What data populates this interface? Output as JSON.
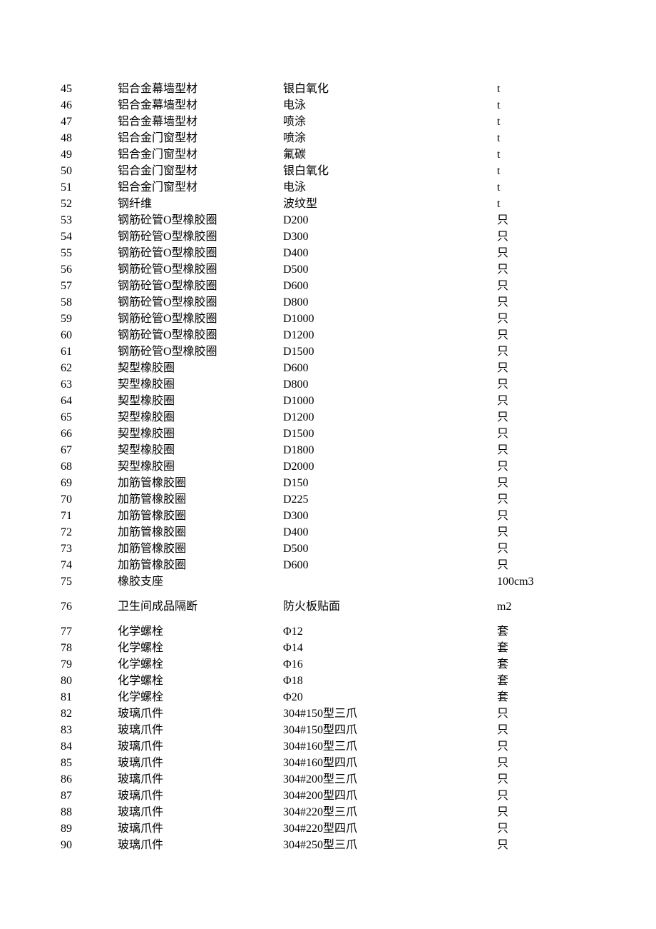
{
  "columns": {
    "num_width": 80,
    "name_width": 232,
    "spec_width": 300
  },
  "rows": [
    {
      "num": "45",
      "name": "铝合金幕墙型材",
      "spec": "银白氧化",
      "unit": "t"
    },
    {
      "num": "46",
      "name": "铝合金幕墙型材",
      "spec": "电泳",
      "unit": "t"
    },
    {
      "num": "47",
      "name": "铝合金幕墙型材",
      "spec": "喷涂",
      "unit": "t"
    },
    {
      "num": "48",
      "name": "铝合金门窗型材",
      "spec": "喷涂",
      "unit": "t"
    },
    {
      "num": "49",
      "name": "铝合金门窗型材",
      "spec": "氟碳",
      "unit": "t"
    },
    {
      "num": "50",
      "name": "铝合金门窗型材",
      "spec": "银白氧化",
      "unit": "t"
    },
    {
      "num": "51",
      "name": "铝合金门窗型材",
      "spec": "电泳",
      "unit": "t"
    },
    {
      "num": "52",
      "name": "钢纤维",
      "spec": "波纹型",
      "unit": "t"
    },
    {
      "num": "53",
      "name": "钢筋砼管O型橡胶圈",
      "spec": "D200",
      "unit": "只"
    },
    {
      "num": "54",
      "name": "钢筋砼管O型橡胶圈",
      "spec": "D300",
      "unit": "只"
    },
    {
      "num": "55",
      "name": "钢筋砼管O型橡胶圈",
      "spec": "D400",
      "unit": "只"
    },
    {
      "num": "56",
      "name": "钢筋砼管O型橡胶圈",
      "spec": "D500",
      "unit": "只"
    },
    {
      "num": "57",
      "name": "钢筋砼管O型橡胶圈",
      "spec": "D600",
      "unit": "只"
    },
    {
      "num": "58",
      "name": "钢筋砼管O型橡胶圈",
      "spec": "D800",
      "unit": "只"
    },
    {
      "num": "59",
      "name": "钢筋砼管O型橡胶圈",
      "spec": "D1000",
      "unit": "只"
    },
    {
      "num": "60",
      "name": "钢筋砼管O型橡胶圈",
      "spec": "D1200",
      "unit": "只"
    },
    {
      "num": "61",
      "name": "钢筋砼管O型橡胶圈",
      "spec": "D1500",
      "unit": "只"
    },
    {
      "num": "62",
      "name": "契型橡胶圈",
      "spec": "D600",
      "unit": "只"
    },
    {
      "num": "63",
      "name": "契型橡胶圈",
      "spec": "D800",
      "unit": "只"
    },
    {
      "num": "64",
      "name": "契型橡胶圈",
      "spec": "D1000",
      "unit": "只"
    },
    {
      "num": "65",
      "name": "契型橡胶圈",
      "spec": "D1200",
      "unit": "只"
    },
    {
      "num": "66",
      "name": "契型橡胶圈",
      "spec": "D1500",
      "unit": "只"
    },
    {
      "num": "67",
      "name": "契型橡胶圈",
      "spec": "D1800",
      "unit": "只"
    },
    {
      "num": "68",
      "name": "契型橡胶圈",
      "spec": "D2000",
      "unit": "只"
    },
    {
      "num": "69",
      "name": "加筋管橡胶圈",
      "spec": "D150",
      "unit": "只"
    },
    {
      "num": "70",
      "name": "加筋管橡胶圈",
      "spec": "D225",
      "unit": "只"
    },
    {
      "num": "71",
      "name": "加筋管橡胶圈",
      "spec": "D300",
      "unit": "只"
    },
    {
      "num": "72",
      "name": "加筋管橡胶圈",
      "spec": "D400",
      "unit": "只"
    },
    {
      "num": "73",
      "name": "加筋管橡胶圈",
      "spec": "D500",
      "unit": "只"
    },
    {
      "num": "74",
      "name": "加筋管橡胶圈",
      "spec": "D600",
      "unit": "只"
    },
    {
      "num": "75",
      "name": "橡胶支座",
      "spec": "",
      "unit": "100cm3"
    },
    {
      "num": "76",
      "name": "卫生间成品隔断",
      "spec": "防火板贴面",
      "unit": "m2",
      "spaced": true,
      "spaced_after": true
    },
    {
      "num": "77",
      "name": "化学螺栓",
      "spec": "Φ12",
      "unit": "套"
    },
    {
      "num": "78",
      "name": "化学螺栓",
      "spec": "Φ14",
      "unit": "套"
    },
    {
      "num": "79",
      "name": "化学螺栓",
      "spec": "Φ16",
      "unit": "套"
    },
    {
      "num": "80",
      "name": "化学螺栓",
      "spec": "Φ18",
      "unit": "套"
    },
    {
      "num": "81",
      "name": "化学螺栓",
      "spec": "Φ20",
      "unit": "套"
    },
    {
      "num": "82",
      "name": "玻璃爪件",
      "spec": "304#150型三爪",
      "unit": "只"
    },
    {
      "num": "83",
      "name": "玻璃爪件",
      "spec": "304#150型四爪",
      "unit": "只"
    },
    {
      "num": "84",
      "name": "玻璃爪件",
      "spec": "304#160型三爪",
      "unit": "只"
    },
    {
      "num": "85",
      "name": "玻璃爪件",
      "spec": "304#160型四爪",
      "unit": "只"
    },
    {
      "num": "86",
      "name": "玻璃爪件",
      "spec": "304#200型三爪",
      "unit": "只"
    },
    {
      "num": "87",
      "name": "玻璃爪件",
      "spec": "304#200型四爪",
      "unit": "只"
    },
    {
      "num": "88",
      "name": "玻璃爪件",
      "spec": "304#220型三爪",
      "unit": "只"
    },
    {
      "num": "89",
      "name": "玻璃爪件",
      "spec": "304#220型四爪",
      "unit": "只"
    },
    {
      "num": "90",
      "name": "玻璃爪件",
      "spec": "304#250型三爪",
      "unit": "只"
    }
  ],
  "style": {
    "background_color": "#ffffff",
    "text_color": "#000000",
    "font_size": 16,
    "line_height": 23,
    "font_family_cjk": "SimSun",
    "font_family_latin": "Times New Roman"
  }
}
